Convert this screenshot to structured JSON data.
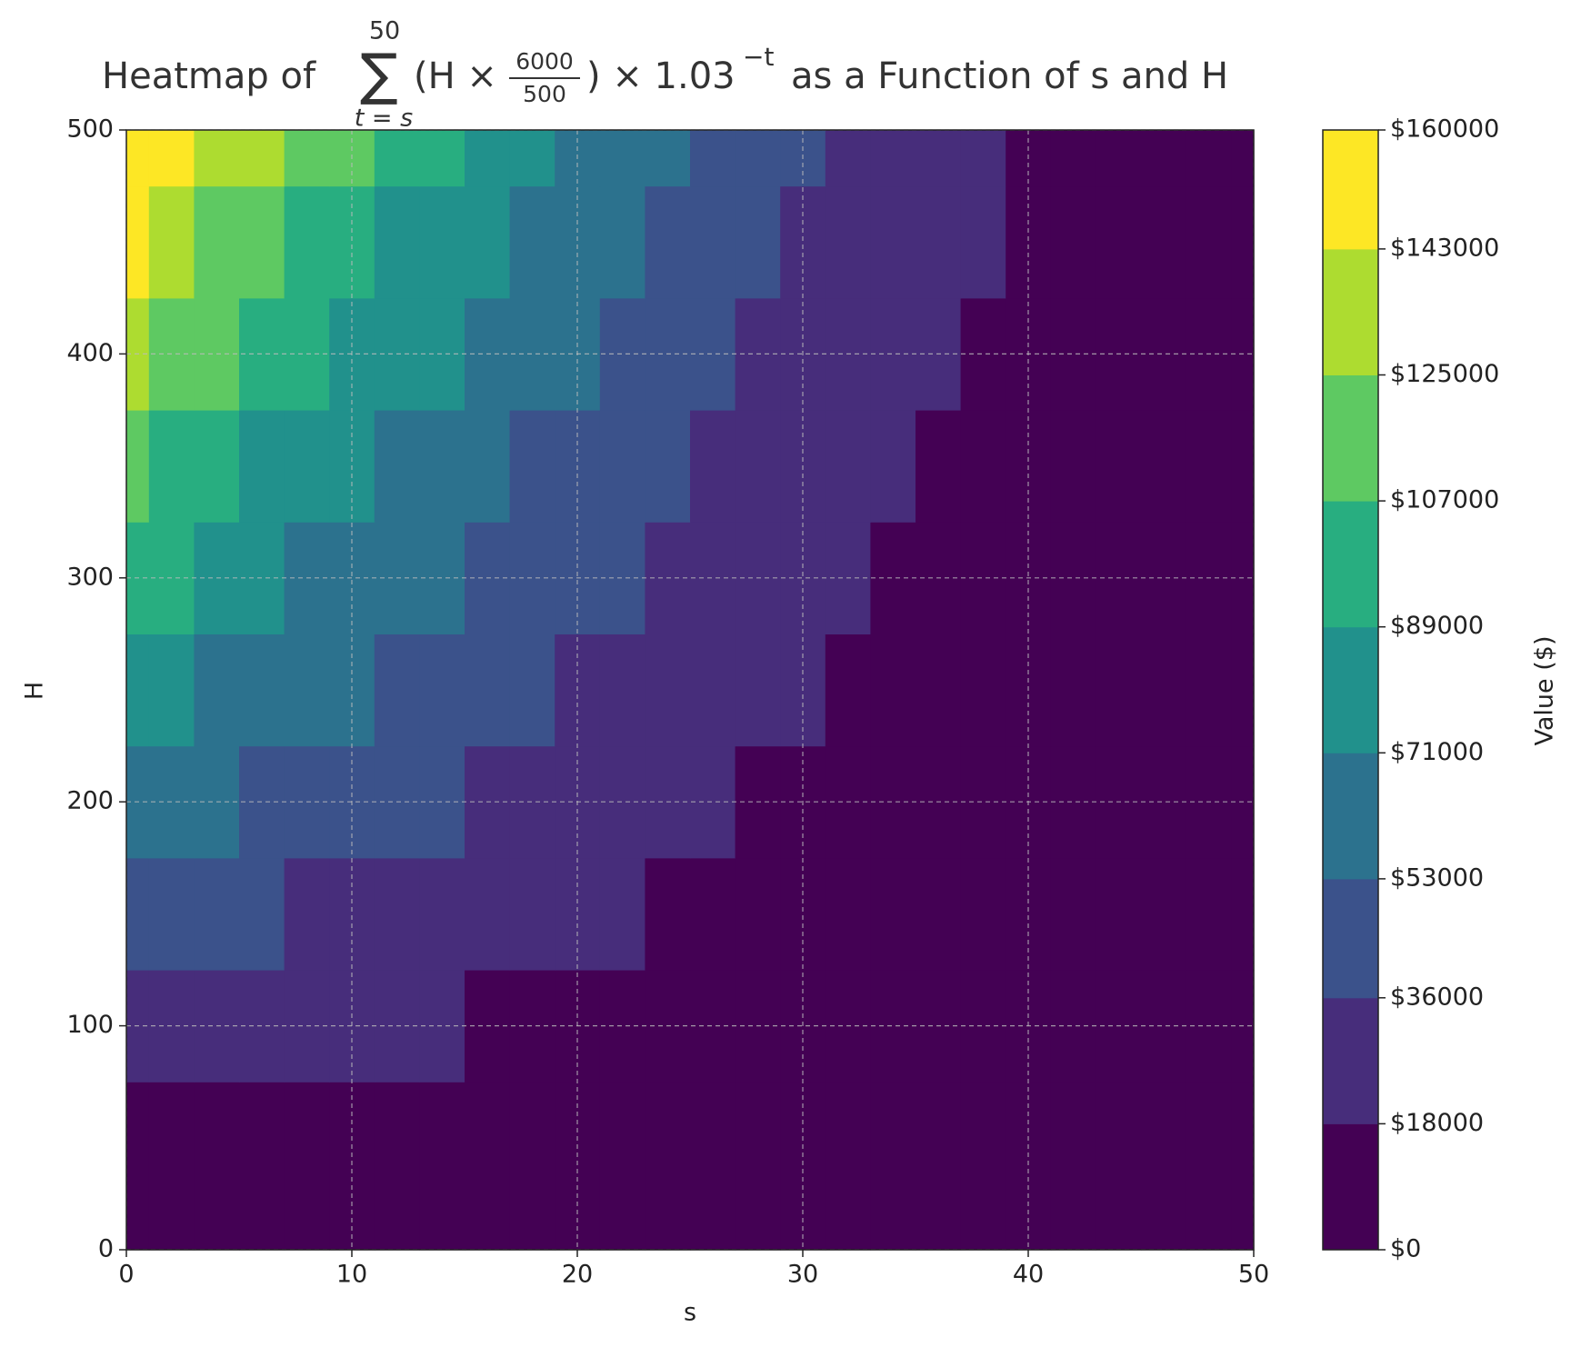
{
  "chart_data": {
    "type": "heatmap",
    "title": {
      "lead": "Heatmap of",
      "sigma": "∑",
      "upper": "50",
      "lower": "t = s",
      "open": "(H ×",
      "num": "6000",
      "den": "500",
      "close": ") × 1.03",
      "exp": "−t",
      "tail": "as a Function of s and H"
    },
    "xlabel": "s",
    "ylabel": "H",
    "colorbar_label": "Value ($)",
    "xlim": [
      0,
      50
    ],
    "ylim": [
      0,
      500
    ],
    "xticks": [
      0,
      10,
      20,
      30,
      40,
      50
    ],
    "yticks": [
      0,
      100,
      200,
      300,
      400,
      500
    ],
    "grid": true,
    "x": [
      0,
      2,
      4,
      6,
      8,
      10,
      12,
      14,
      16,
      18,
      20,
      22,
      24,
      26,
      28,
      30,
      32,
      34,
      36,
      38,
      40,
      42,
      44,
      46,
      48,
      50
    ],
    "y": [
      0,
      50,
      100,
      150,
      200,
      250,
      300,
      350,
      400,
      450,
      500
    ],
    "z": [
      [
        0,
        0,
        0,
        0,
        0,
        0,
        0,
        0,
        0,
        0,
        0,
        0,
        0,
        0,
        0,
        0,
        0,
        0,
        0,
        0,
        0,
        0,
        0,
        0,
        0,
        0
      ],
      [
        16038,
        14856,
        13741,
        12690,
        11700,
        10766,
        9886,
        9057,
        8275,
        7538,
        6844,
        6189,
        5572,
        4990,
        4442,
        3925,
        3438,
        2978,
        2546,
        2138,
        1753,
        1391,
        1049,
        727,
        423,
        137
      ],
      [
        32076,
        29711,
        27481,
        25380,
        23399,
        21532,
        19772,
        18114,
        16550,
        15076,
        13687,
        12378,
        11143,
        9980,
        8883,
        7850,
        6875,
        5956,
        5091,
        4275,
        3506,
        2781,
        2097,
        1453,
        846,
        274
      ],
      [
        48114,
        44567,
        41222,
        38070,
        35099,
        32298,
        29658,
        27171,
        24825,
        22614,
        20531,
        18567,
        16715,
        14970,
        13325,
        11775,
        10313,
        8934,
        7637,
        6413,
        5259,
        4172,
        3146,
        2180,
        1269,
        411
      ],
      [
        64152,
        59422,
        54962,
        50760,
        46798,
        43064,
        39544,
        36228,
        33100,
        30152,
        27374,
        24756,
        22286,
        19960,
        17766,
        15700,
        13750,
        11912,
        10182,
        8550,
        7012,
        5562,
        4194,
        2906,
        1692,
        548
      ],
      [
        80190,
        74278,
        68703,
        63450,
        58498,
        53830,
        49430,
        45285,
        41375,
        37690,
        34218,
        30945,
        27858,
        24950,
        22208,
        19625,
        17188,
        14890,
        12728,
        10688,
        8765,
        6953,
        5243,
        3633,
        2115,
        685
      ],
      [
        96228,
        89133,
        82443,
        76140,
        70197,
        64596,
        59316,
        54342,
        49650,
        45228,
        41061,
        37134,
        33429,
        29940,
        26649,
        23550,
        20625,
        17868,
        15273,
        12825,
        10518,
        8343,
        6291,
        4359,
        2538,
        822
      ],
      [
        112266,
        103989,
        96184,
        88830,
        81897,
        75362,
        69202,
        63399,
        57925,
        52766,
        47905,
        43323,
        39001,
        34930,
        31091,
        27475,
        24063,
        20846,
        17819,
        14963,
        12271,
        9734,
        7340,
        5086,
        2961,
        959
      ],
      [
        128304,
        118844,
        109924,
        101520,
        93596,
        86128,
        79088,
        72456,
        66200,
        60304,
        54748,
        49512,
        44572,
        39920,
        35532,
        31400,
        27500,
        23824,
        20364,
        17100,
        14024,
        11124,
        8388,
        5812,
        3384,
        1096
      ],
      [
        144342,
        133700,
        123665,
        114210,
        105296,
        96894,
        88974,
        81518,
        74475,
        67842,
        61592,
        55701,
        50144,
        44910,
        39973,
        35325,
        30938,
        26802,
        22910,
        19238,
        15777,
        12519,
        9437,
        6539,
        3807,
        1233
      ],
      [
        160380,
        148555,
        137405,
        126900,
        116995,
        107660,
        98860,
        90570,
        82750,
        75380,
        68435,
        61890,
        55715,
        49900,
        44415,
        39250,
        34375,
        29780,
        25455,
        21375,
        17530,
        13905,
        10485,
        7265,
        4230,
        1370
      ]
    ],
    "levels": [
      {
        "value": 0,
        "label": "$0"
      },
      {
        "value": 18000,
        "label": "$18000"
      },
      {
        "value": 36000,
        "label": "$36000"
      },
      {
        "value": 53000,
        "label": "$53000"
      },
      {
        "value": 71000,
        "label": "$71000"
      },
      {
        "value": 89000,
        "label": "$89000"
      },
      {
        "value": 107000,
        "label": "$107000"
      },
      {
        "value": 125000,
        "label": "$125000"
      },
      {
        "value": 143000,
        "label": "$143000"
      },
      {
        "value": 160000,
        "label": "$160000"
      }
    ],
    "colors": [
      "#440154",
      "#472d7b",
      "#3b528b",
      "#2c728e",
      "#21918c",
      "#28ae80",
      "#5ec962",
      "#addc30",
      "#fde725"
    ]
  }
}
